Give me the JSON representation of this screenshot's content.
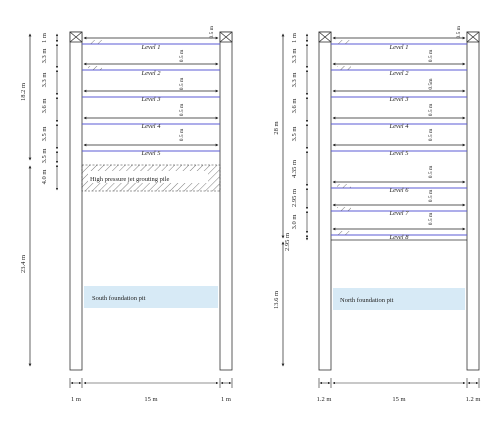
{
  "south": {
    "levels": [
      "Level 1",
      "Level 2",
      "Level 3",
      "Level 4",
      "Level 5"
    ],
    "depth_total_upper": "18.2 m",
    "depth_total_lower": "23.4 m",
    "spacings": [
      "1 m",
      "3.3 m",
      "3.3 m",
      "3.6 m",
      "3.5 m",
      "3.5 m",
      "4.0 m"
    ],
    "offsets": [
      "0.5 m",
      "0.5 m",
      "0.5 m",
      "0.5 m",
      "0.5 m"
    ],
    "grout_label": "High pressure jet grouting pile",
    "pit_label": "South foundation pit",
    "bottom_left": "1 m",
    "bottom_mid": "15 m",
    "bottom_right": "1 m"
  },
  "north": {
    "levels": [
      "Level 1",
      "Level 2",
      "Level 3",
      "Level 4",
      "Level 5",
      "Level 6",
      "Level 7",
      "Level 8"
    ],
    "depth_total_upper": "28 m",
    "depth_total_lower": "13.6 m",
    "spacings": [
      "1 m",
      "3.3 m",
      "3.3 m",
      "3.6 m",
      "3.5 m",
      "4.35 m",
      "2.95 m",
      "3.0 m",
      "2.95 m"
    ],
    "offsets": [
      "0.5 m",
      "0.5 m",
      "0.5m",
      "0.5 m",
      "0.5 m",
      "0.5 m",
      "0.5 m",
      "0.5 m"
    ],
    "pit_label": "North foundation pit",
    "bottom_left": "1.2 m",
    "bottom_mid": "15 m",
    "bottom_right": "1.2 m"
  },
  "colors": {
    "strut": "#5b5bd6",
    "pit_fill": "#d7eaf6",
    "line": "#333333"
  }
}
